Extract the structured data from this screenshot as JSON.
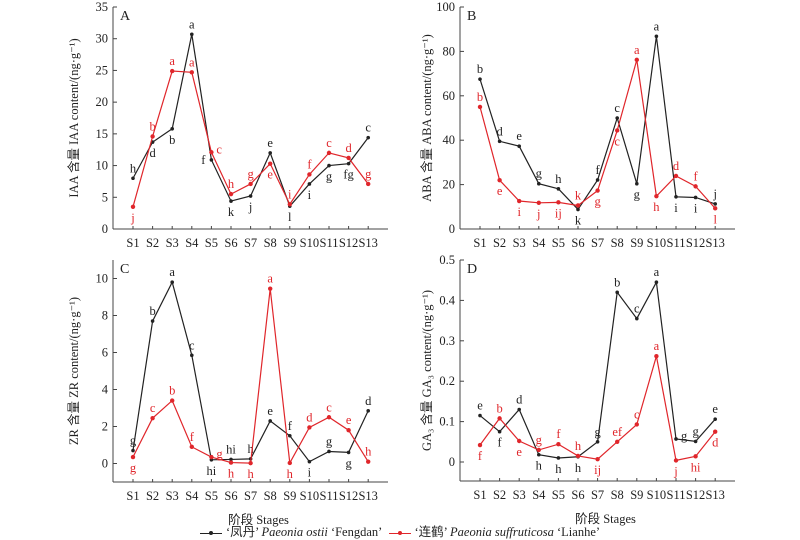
{
  "legend": {
    "series": [
      {
        "prefix": "‘凤丹’ ",
        "species": "Paeonia ostii",
        "suffix": " ‘Fengdan’",
        "color": "#222222"
      },
      {
        "prefix": "‘连鹤’ ",
        "species": "Paeonia suffruticosa",
        "suffix": " ‘Lianhe’",
        "color": "#e0262b"
      }
    ]
  },
  "chart_data": [
    {
      "panel": "A",
      "type": "line",
      "ylabel": "IAA 含量 IAA content/(ng·g⁻¹)",
      "xlabel": "",
      "ylim": [
        0,
        35
      ],
      "yticks": [
        0,
        5,
        10,
        15,
        20,
        25,
        30,
        35
      ],
      "categories": [
        "S1",
        "S2",
        "S3",
        "S4",
        "S5",
        "S6",
        "S7",
        "S8",
        "S9",
        "S10",
        "S11",
        "S12",
        "S13"
      ],
      "series": [
        {
          "name": "‘凤丹’ Paeonia ostii ‘Fengdan’",
          "color": "#222222",
          "values": [
            8.0,
            13.7,
            15.8,
            30.7,
            10.9,
            4.4,
            5.2,
            12.0,
            3.6,
            7.1,
            10.0,
            10.3,
            14.4
          ],
          "letters": [
            "h",
            "d",
            "b",
            "a",
            "f",
            "k",
            "j",
            "e",
            "l",
            "i",
            "g",
            "fg",
            "c"
          ],
          "label_pos": [
            "above",
            "below",
            "below",
            "above",
            "left",
            "below",
            "below",
            "above",
            "below",
            "below",
            "below",
            "below",
            "above"
          ]
        },
        {
          "name": "‘连鹤’ Paeonia suffruticosa ‘Lianhe’",
          "color": "#e0262b",
          "values": [
            3.5,
            14.6,
            24.9,
            24.7,
            12.1,
            5.5,
            7.1,
            10.3,
            3.9,
            8.6,
            12.0,
            11.2,
            7.1
          ],
          "letters": [
            "j",
            "b",
            "a",
            "a",
            "c",
            "h",
            "g",
            "e",
            "i",
            "f",
            "c",
            "d",
            "g"
          ],
          "label_pos": [
            "below",
            "above",
            "above",
            "above",
            "right",
            "above",
            "above",
            "below",
            "above",
            "above",
            "above",
            "above",
            "above"
          ]
        }
      ]
    },
    {
      "panel": "B",
      "type": "line",
      "ylabel": "ABA 含量 ABA content/(ng·g⁻¹)",
      "xlabel": "",
      "ylim": [
        0,
        100
      ],
      "yticks": [
        0,
        20,
        40,
        60,
        80,
        100
      ],
      "categories": [
        "S1",
        "S2",
        "S3",
        "S4",
        "S5",
        "S6",
        "S7",
        "S8",
        "S9",
        "S10",
        "S11",
        "S12",
        "S13"
      ],
      "series": [
        {
          "name": "‘凤丹’ Paeonia ostii ‘Fengdan’",
          "color": "#222222",
          "values": [
            67.5,
            39.5,
            37.3,
            20.4,
            18.1,
            8.8,
            22.1,
            50.0,
            20.4,
            86.8,
            14.5,
            14.2,
            11.3
          ],
          "letters": [
            "b",
            "d",
            "e",
            "g",
            "h",
            "k",
            "f",
            "c",
            "g",
            "a",
            "i",
            "i",
            "j"
          ],
          "label_pos": [
            "above",
            "above",
            "above",
            "above",
            "above",
            "below",
            "above",
            "above",
            "below",
            "above",
            "below",
            "below",
            "above"
          ]
        },
        {
          "name": "‘连鹤’ Paeonia suffruticosa ‘Lianhe’",
          "color": "#e0262b",
          "values": [
            55.0,
            22.0,
            12.6,
            11.8,
            12.0,
            10.6,
            17.3,
            44.4,
            76.2,
            14.8,
            23.9,
            19.2,
            9.3
          ],
          "letters": [
            "b",
            "e",
            "i",
            "j",
            "ij",
            "k",
            "g",
            "c",
            "a",
            "h",
            "d",
            "f",
            "l"
          ],
          "label_pos": [
            "above",
            "below",
            "below",
            "below",
            "below",
            "above",
            "below",
            "below",
            "above",
            "below",
            "above",
            "above",
            "below"
          ]
        }
      ]
    },
    {
      "panel": "C",
      "type": "line",
      "ylabel": "ZR 含量 ZR content/(ng·g⁻¹)",
      "xlabel": "阶段 Stages",
      "ylim": [
        -1,
        11
      ],
      "yticks": [
        0,
        2,
        4,
        6,
        8,
        10
      ],
      "categories": [
        "S1",
        "S2",
        "S3",
        "S4",
        "S5",
        "S6",
        "S7",
        "S8",
        "S9",
        "S10",
        "S11",
        "S12",
        "S13"
      ],
      "series": [
        {
          "name": "‘凤丹’ Paeonia ostii ‘Fengdan’",
          "color": "#222222",
          "values": [
            0.7,
            7.7,
            9.8,
            5.85,
            0.2,
            0.22,
            0.25,
            2.3,
            1.5,
            0.1,
            0.65,
            0.6,
            2.85
          ],
          "letters": [
            "g",
            "b",
            "a",
            "c",
            "hi",
            "hi",
            "h",
            "e",
            "f",
            "i",
            "g",
            "g",
            "d"
          ],
          "label_pos": [
            "above",
            "above",
            "above",
            "above",
            "below",
            "above",
            "above",
            "above",
            "above",
            "below",
            "above",
            "below",
            "above"
          ]
        },
        {
          "name": "‘连鹤’ Paeonia suffruticosa ‘Lianhe’",
          "color": "#e0262b",
          "values": [
            0.35,
            2.45,
            3.4,
            0.9,
            0.35,
            0.05,
            0.02,
            9.45,
            0.03,
            1.95,
            2.5,
            1.8,
            0.1
          ],
          "letters": [
            "g",
            "c",
            "b",
            "f",
            "g",
            "h",
            "h",
            "a",
            "h",
            "d",
            "c",
            "e",
            "h"
          ],
          "label_pos": [
            "below",
            "above",
            "above",
            "above",
            "right",
            "below",
            "below",
            "above",
            "below",
            "above",
            "above",
            "above",
            "above"
          ]
        }
      ]
    },
    {
      "panel": "D",
      "type": "line",
      "ylabel": "GA₃ 含量 GA₃ content/(ng·g⁻¹)",
      "xlabel": "阶段 Stages",
      "ylim": [
        -0.047,
        0.5
      ],
      "yticks": [
        0,
        0.1,
        0.2,
        0.3,
        0.4,
        0.5
      ],
      "categories": [
        "S1",
        "S2",
        "S3",
        "S4",
        "S5",
        "S6",
        "S7",
        "S8",
        "S9",
        "S10",
        "S11",
        "S12",
        "S13"
      ],
      "series": [
        {
          "name": "‘凤丹’ Paeonia ostii ‘Fengdan’",
          "color": "#222222",
          "values": [
            0.115,
            0.075,
            0.13,
            0.018,
            0.01,
            0.013,
            0.05,
            0.42,
            0.355,
            0.445,
            0.057,
            0.051,
            0.106
          ],
          "letters": [
            "e",
            "f",
            "d",
            "h",
            "h",
            "h",
            "g",
            "b",
            "c",
            "a",
            "g",
            "g",
            "e"
          ],
          "label_pos": [
            "above",
            "below",
            "above",
            "below",
            "below",
            "below",
            "above",
            "above",
            "above",
            "above",
            "right",
            "above",
            "above"
          ]
        },
        {
          "name": "‘连鹤’ Paeonia suffruticosa ‘Lianhe’",
          "color": "#e0262b",
          "values": [
            0.042,
            0.108,
            0.052,
            0.03,
            0.044,
            0.015,
            0.007,
            0.05,
            0.093,
            0.262,
            0.004,
            0.014,
            0.075
          ],
          "letters": [
            "f",
            "b",
            "e",
            "g",
            "f",
            "h",
            "ij",
            "ef",
            "c",
            "a",
            "j",
            "hi",
            "d"
          ],
          "label_pos": [
            "below",
            "above",
            "below",
            "above",
            "above",
            "above",
            "below",
            "above",
            "above",
            "above",
            "below",
            "below",
            "below"
          ]
        }
      ]
    }
  ]
}
